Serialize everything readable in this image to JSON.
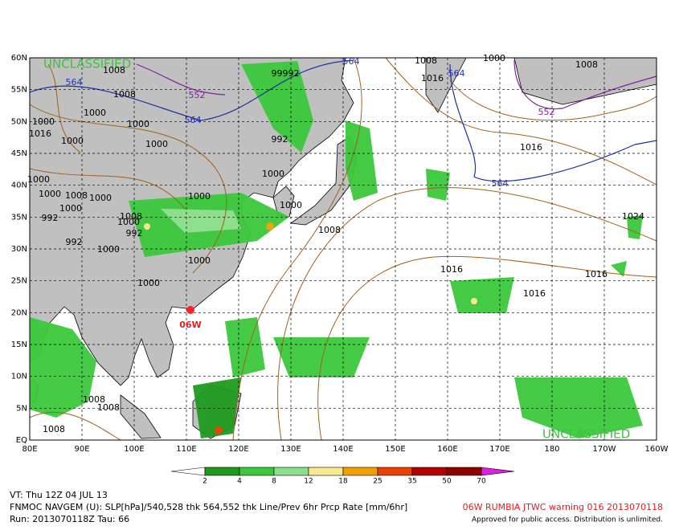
{
  "map": {
    "lat_labels": [
      "60N",
      "55N",
      "50N",
      "45N",
      "40N",
      "35N",
      "30N",
      "25N",
      "20N",
      "15N",
      "10N",
      "5N",
      "EQ"
    ],
    "lon_labels": [
      "80E",
      "90E",
      "100E",
      "110E",
      "120E",
      "130E",
      "140E",
      "150E",
      "160E",
      "170E",
      "180",
      "170W",
      "160W"
    ],
    "watermarks": [
      "UNCLASSIFIED",
      "UNCLASSIFIED"
    ],
    "storm_label": "06W",
    "contour_labels": [
      "1008",
      "564",
      "1008",
      "552",
      "99992",
      "564",
      "1008",
      "1016",
      "564",
      "1000",
      "1008",
      "552",
      "1000",
      "1000",
      "564",
      "1000",
      "1016",
      "1000",
      "1000",
      "992",
      "1016",
      "1000",
      "564",
      "1000",
      "1000",
      "1008",
      "1000",
      "1000",
      "1000",
      "1000",
      "1024",
      "992",
      "1008",
      "1000",
      "992",
      "1008",
      "992",
      "1000",
      "1000",
      "1016",
      "1016",
      "1000",
      "1016",
      "1008",
      "1008",
      "1008"
    ]
  },
  "legend": {
    "levels": [
      2,
      4,
      8,
      12,
      18,
      25,
      35,
      50,
      70
    ]
  },
  "footer": {
    "valid_time": "VT: Thu 12Z 04 JUL 13",
    "product": "FNMOC NAVGEM (U): SLP[hPa]/540,528 thk 564,552 thk Line/Prev 6hr Prcp Rate [mm/6hr]",
    "run": "Run: 2013070118Z Tau: 66",
    "warning": "06W RUMBIA JTWC warning 016 2013070118",
    "release": "Approved for public access. Distribution is unlimited."
  }
}
